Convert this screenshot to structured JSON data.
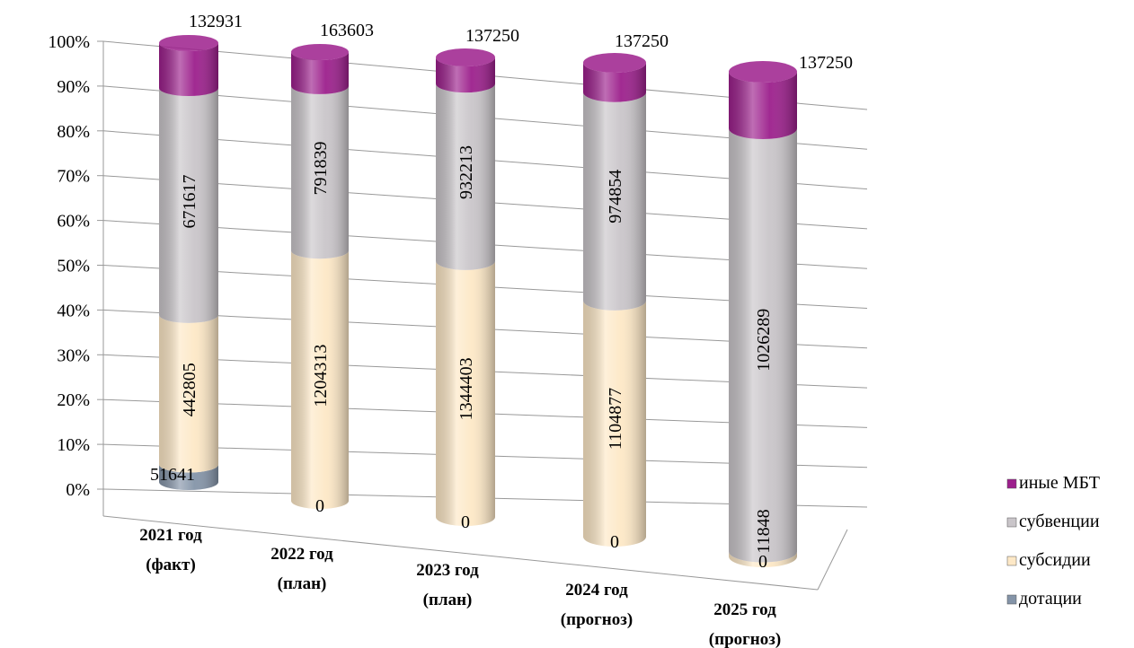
{
  "chart_data": {
    "type": "stacked_cylinder_100",
    "categories": [
      [
        "2021 год",
        "(факт)"
      ],
      [
        "2022 год",
        "(план)"
      ],
      [
        "2023 год",
        "(план)"
      ],
      [
        "2024 год",
        "(прогноз)"
      ],
      [
        "2025 год",
        "(прогноз)"
      ]
    ],
    "series": [
      {
        "name": "дотации",
        "color": "#8494a8",
        "values": [
          51641,
          0,
          0,
          0,
          0
        ]
      },
      {
        "name": "субсидии",
        "color": "#fde8c6",
        "values": [
          442805,
          1204313,
          1344403,
          1104877,
          11848
        ]
      },
      {
        "name": "субвенции",
        "color": "#c9c5c9",
        "values": [
          671617,
          791839,
          932213,
          974854,
          1026289
        ]
      },
      {
        "name": "иные МБТ",
        "color": "#9c1f8c",
        "values": [
          132931,
          163603,
          137250,
          137250,
          137250
        ]
      }
    ],
    "ylim": [
      0,
      100
    ],
    "yticks": [
      {
        "value": 0,
        "label": "0%"
      },
      {
        "value": 10,
        "label": "10%"
      },
      {
        "value": 20,
        "label": "20%"
      },
      {
        "value": 30,
        "label": "30%"
      },
      {
        "value": 40,
        "label": "40%"
      },
      {
        "value": 50,
        "label": "50%"
      },
      {
        "value": 60,
        "label": "60%"
      },
      {
        "value": 70,
        "label": "70%"
      },
      {
        "value": 80,
        "label": "80%"
      },
      {
        "value": 90,
        "label": "90%"
      },
      {
        "value": 100,
        "label": "100%"
      }
    ],
    "grid": true,
    "legend": "right"
  }
}
